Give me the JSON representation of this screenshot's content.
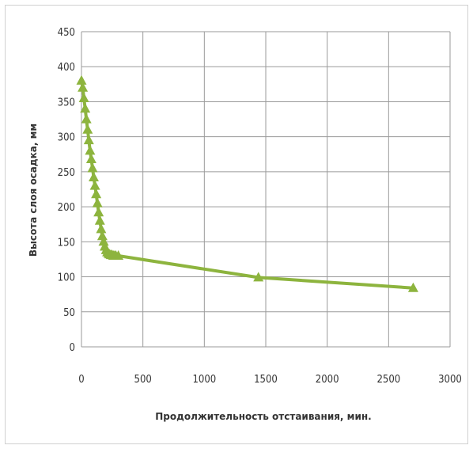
{
  "chart_data": {
    "type": "line",
    "title": "",
    "xlabel": "Продолжительность отстаивания, мин.",
    "ylabel": "Высота слоя осадка, мм",
    "xlim": [
      0,
      3000
    ],
    "ylim": [
      0,
      450
    ],
    "xticks": [
      "0",
      "500",
      "1000",
      "1500",
      "2000",
      "2500",
      "3000"
    ],
    "yticks": [
      "0",
      "50",
      "100",
      "150",
      "200",
      "250",
      "300",
      "350",
      "400",
      "450"
    ],
    "grid": true,
    "legend": "none",
    "marker": "triangle",
    "color": "#8db43e",
    "series": [
      {
        "x": [
          0,
          10,
          20,
          30,
          40,
          50,
          60,
          70,
          80,
          90,
          100,
          110,
          120,
          130,
          140,
          150,
          160,
          170,
          180,
          190,
          200,
          210,
          220,
          230,
          240,
          250,
          260,
          270,
          280,
          300,
          1440,
          2700
        ],
        "y": [
          380,
          370,
          355,
          340,
          325,
          310,
          295,
          280,
          268,
          255,
          242,
          230,
          218,
          205,
          192,
          180,
          168,
          158,
          150,
          143,
          138,
          135,
          133,
          132,
          131,
          131,
          130,
          130,
          130,
          130,
          99,
          84
        ]
      }
    ]
  }
}
